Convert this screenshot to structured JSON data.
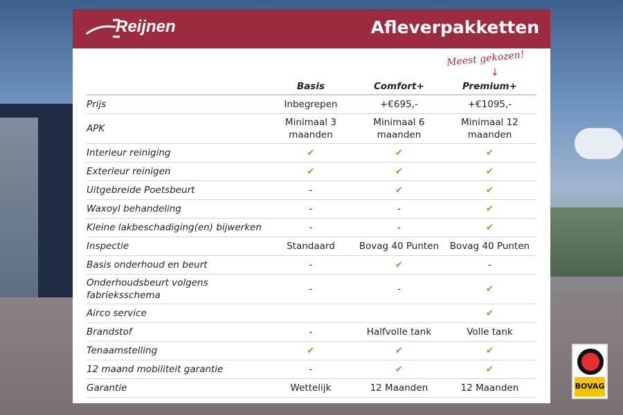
{
  "header": {
    "brand": "Reijnen",
    "title": "Afleverpakketten"
  },
  "annotation": "Meest gekozen!",
  "columns": [
    "",
    "Basis",
    "Comfort+",
    "Premium+"
  ],
  "rows": [
    {
      "label": "Prijs",
      "values": [
        "Inbegrepen",
        "+€695,-",
        "+€1095,-"
      ]
    },
    {
      "label": "APK",
      "values": [
        "Minimaal 3 maanden",
        "Minimaal 6 maanden",
        "Minimaal 12 maanden"
      ]
    },
    {
      "label": "Interieur reiniging",
      "values": [
        "✔",
        "✔",
        "✔"
      ]
    },
    {
      "label": "Exterieur reinigen",
      "values": [
        "✔",
        "✔",
        "✔"
      ]
    },
    {
      "label": "Uitgebreide Poetsbeurt",
      "values": [
        "-",
        "✔",
        "✔"
      ]
    },
    {
      "label": "Waxoyl behandeling",
      "values": [
        "-",
        "-",
        "✔"
      ]
    },
    {
      "label": "Kleine lakbeschadiging(en) bijwerken",
      "values": [
        "-",
        "-",
        "✔"
      ]
    },
    {
      "label": "Inspectie",
      "values": [
        "Standaard",
        "Bovag 40 Punten",
        "Bovag 40 Punten"
      ]
    },
    {
      "label": "Basis onderhoud en beurt",
      "values": [
        "-",
        "✔",
        "-"
      ]
    },
    {
      "label": "Onderhoudsbeurt volgens fabrieksschema",
      "values": [
        "-",
        "-",
        "✔"
      ]
    },
    {
      "label": "Airco service",
      "values": [
        "",
        "",
        "✔"
      ]
    },
    {
      "label": "Brandstof",
      "values": [
        "-",
        "Halfvolle tank",
        "Volle tank"
      ]
    },
    {
      "label": "Tenaamstelling",
      "values": [
        "✔",
        "✔",
        "✔"
      ]
    },
    {
      "label": "12 maand mobiliteit garantie",
      "values": [
        "-",
        "✔",
        "✔"
      ]
    },
    {
      "label": "Garantie",
      "values": [
        "Wettelijk",
        "12 Maanden",
        "12 Maanden"
      ]
    }
  ],
  "badge": {
    "text": "BOVAG"
  },
  "colors": {
    "brand": "#9c2b3f",
    "check": "#7fae3a"
  }
}
